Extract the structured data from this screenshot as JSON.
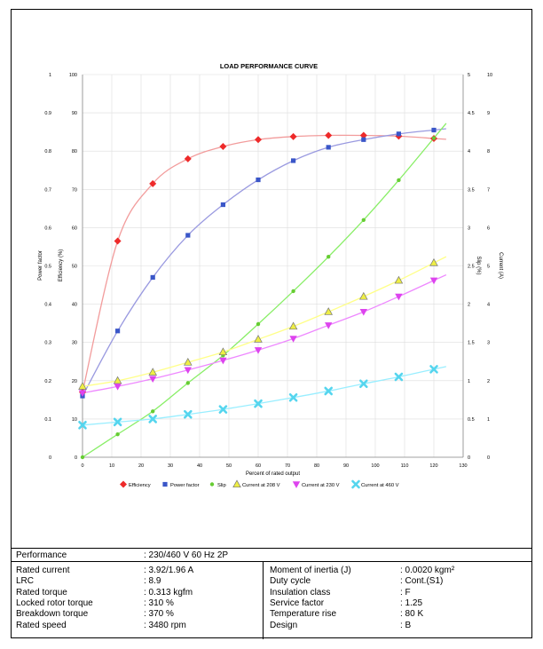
{
  "chart_data": {
    "type": "line",
    "title": "LOAD PERFORMANCE CURVE",
    "xlabel": "Percent of rated output",
    "xlim": [
      0,
      130
    ],
    "x_ticks": [
      "0",
      "10",
      "20",
      "30",
      "40",
      "50",
      "60",
      "70",
      "80",
      "90",
      "100",
      "110",
      "120",
      "130"
    ],
    "axes": {
      "power_factor": {
        "label": "Power factor",
        "range": [
          0,
          1
        ],
        "ticks": [
          "0",
          "0.1",
          "0.2",
          "0.3",
          "0.4",
          "0.5",
          "0.6",
          "0.7",
          "0.8",
          "0.9",
          "1"
        ]
      },
      "efficiency": {
        "label": "Efficiency (%)",
        "range": [
          0,
          100
        ],
        "ticks": [
          "0",
          "10",
          "20",
          "30",
          "40",
          "50",
          "60",
          "70",
          "80",
          "90",
          "100"
        ]
      },
      "slip": {
        "label": "Slip (%)",
        "range": [
          0,
          5
        ],
        "ticks": [
          "0",
          "0.5",
          "1",
          "1.5",
          "2",
          "2.5",
          "3",
          "3.5",
          "4",
          "4.5",
          "5"
        ]
      },
      "current": {
        "label": "Current (A)",
        "range": [
          0,
          10
        ],
        "ticks": [
          "0",
          "1",
          "2",
          "3",
          "4",
          "5",
          "6",
          "7",
          "8",
          "9",
          "10"
        ]
      }
    },
    "grid": true,
    "legend_position": "bottom",
    "series": [
      {
        "name": "Efficiency",
        "axis": "efficiency",
        "color": "#ee2a2a",
        "line_color": "#f29c9c",
        "marker": "diamond",
        "x": [
          0,
          12,
          24,
          36,
          48,
          60,
          72,
          84,
          96,
          108,
          120
        ],
        "y": [
          17,
          56.5,
          71.5,
          78,
          81.2,
          83,
          83.8,
          84.1,
          84.1,
          83.9,
          83.3
        ]
      },
      {
        "name": "Power factor",
        "axis": "power_factor",
        "color": "#3a56c8",
        "line_color": "#9a9ae0",
        "marker": "square",
        "x": [
          0,
          12,
          24,
          36,
          48,
          60,
          72,
          84,
          96,
          108,
          120
        ],
        "y": [
          0.16,
          0.33,
          0.47,
          0.58,
          0.66,
          0.725,
          0.775,
          0.81,
          0.83,
          0.845,
          0.855
        ]
      },
      {
        "name": "Slip",
        "axis": "slip",
        "color": "#66cc33",
        "line_color": "#88ee66",
        "marker": "circle",
        "x": [
          0,
          12,
          24,
          36,
          48,
          60,
          72,
          84,
          96,
          108,
          120
        ],
        "y": [
          0,
          0.3,
          0.6,
          0.97,
          1.33,
          1.74,
          2.17,
          2.62,
          3.1,
          3.62,
          4.17
        ]
      },
      {
        "name": "Current at 208 V",
        "axis": "current",
        "color": "#eeee44",
        "line_color": "#ffff88",
        "marker": "triangle-up",
        "x": [
          0,
          12,
          24,
          36,
          48,
          60,
          72,
          84,
          96,
          108,
          120
        ],
        "y": [
          1.85,
          2.0,
          2.22,
          2.48,
          2.75,
          3.08,
          3.42,
          3.8,
          4.2,
          4.62,
          5.08
        ]
      },
      {
        "name": "Current at 230 V",
        "axis": "current",
        "color": "#dd44ee",
        "line_color": "#ee88ff",
        "marker": "triangle-down",
        "x": [
          0,
          12,
          24,
          36,
          48,
          60,
          72,
          84,
          96,
          108,
          120
        ],
        "y": [
          1.68,
          1.85,
          2.05,
          2.28,
          2.53,
          2.8,
          3.1,
          3.45,
          3.8,
          4.2,
          4.62
        ]
      },
      {
        "name": "Current at 460 V",
        "axis": "current",
        "color": "#55d5ee",
        "line_color": "#99eeff",
        "marker": "x",
        "x": [
          0,
          12,
          24,
          36,
          48,
          60,
          72,
          84,
          96,
          108,
          120
        ],
        "y": [
          0.84,
          0.92,
          1.0,
          1.12,
          1.25,
          1.4,
          1.56,
          1.73,
          1.92,
          2.1,
          2.3
        ]
      }
    ]
  },
  "specs": {
    "performance": {
      "label": "Performance",
      "value": ": 230/460 V 60 Hz 2P"
    },
    "left": [
      {
        "label": "Rated current",
        "value": ": 3.92/1.96 A"
      },
      {
        "label": "LRC",
        "value": ": 8.9"
      },
      {
        "label": "Rated torque",
        "value": ": 0.313 kgfm"
      },
      {
        "label": "Locked rotor torque",
        "value": ": 310 %"
      },
      {
        "label": "Breakdown torque",
        "value": ": 370 %"
      },
      {
        "label": "Rated speed",
        "value": ": 3480 rpm"
      }
    ],
    "right": [
      {
        "label": "Moment of inertia (J)",
        "value": ": 0.0020 kgm²"
      },
      {
        "label": "Duty cycle",
        "value": ": Cont.(S1)"
      },
      {
        "label": "Insulation class",
        "value": ": F"
      },
      {
        "label": "Service factor",
        "value": ": 1.25"
      },
      {
        "label": "Temperature rise",
        "value": ": 80 K"
      },
      {
        "label": "Design",
        "value": ": B"
      }
    ]
  }
}
